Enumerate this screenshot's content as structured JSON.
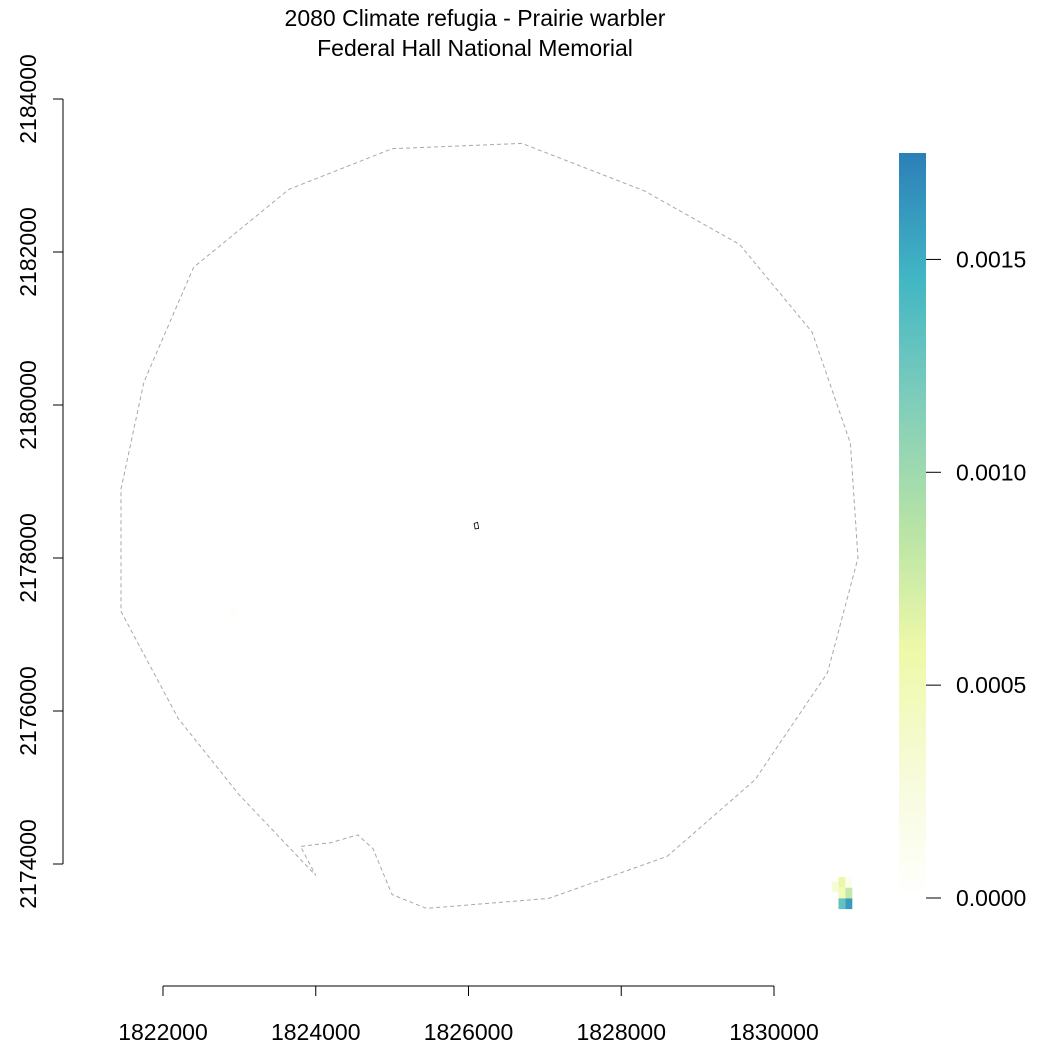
{
  "title": {
    "line1": "2080 Climate refugia - Prairie warbler",
    "line2": "Federal Hall National Memorial"
  },
  "map": {
    "x_axis": {
      "range": [
        1821000,
        1831500
      ],
      "ticks": [
        1822000,
        1824000,
        1826000,
        1828000,
        1830000
      ],
      "tick_labels": [
        "1822000",
        "1824000",
        "1826000",
        "1828000",
        "1830000"
      ]
    },
    "y_axis": {
      "range": [
        2172000,
        2185000
      ],
      "ticks": [
        2174000,
        2176000,
        2178000,
        2180000,
        2182000,
        2184000
      ],
      "tick_labels": [
        "2174000",
        "2176000",
        "2178000",
        "2180000",
        "2182000",
        "2184000"
      ]
    },
    "boundary": [
      [
        1825000,
        2183350
      ],
      [
        1826700,
        2183420
      ],
      [
        1828300,
        2182800
      ],
      [
        1829550,
        2182100
      ],
      [
        1830500,
        2180950
      ],
      [
        1831000,
        2179500
      ],
      [
        1831100,
        2178000
      ],
      [
        1830700,
        2176500
      ],
      [
        1829750,
        2175100
      ],
      [
        1828600,
        2174100
      ],
      [
        1827050,
        2173550
      ],
      [
        1825450,
        2173420
      ],
      [
        1825000,
        2173600
      ],
      [
        1824750,
        2174200
      ],
      [
        1824550,
        2174380
      ],
      [
        1824200,
        2174280
      ],
      [
        1823800,
        2174230
      ],
      [
        1824000,
        2173850
      ],
      [
        1823000,
        2174900
      ],
      [
        1822200,
        2175900
      ],
      [
        1821450,
        2177300
      ],
      [
        1821450,
        2178900
      ],
      [
        1821750,
        2180300
      ],
      [
        1822400,
        2181800
      ],
      [
        1823650,
        2182820
      ],
      [
        1825000,
        2183350
      ]
    ],
    "site_marker": [
      1826100,
      2178420
    ],
    "raster_cells": [
      {
        "x": 1822930,
        "y": 2177280,
        "value": 4e-05
      },
      {
        "x": 1830800,
        "y": 2173700,
        "value": 0.0003
      },
      {
        "x": 1830890,
        "y": 2173760,
        "value": 0.0006
      },
      {
        "x": 1830980,
        "y": 2173760,
        "value": 0.00012
      },
      {
        "x": 1830890,
        "y": 2173620,
        "value": 0.0005
      },
      {
        "x": 1830980,
        "y": 2173620,
        "value": 0.0008
      },
      {
        "x": 1830890,
        "y": 2173480,
        "value": 0.0013
      },
      {
        "x": 1830980,
        "y": 2173480,
        "value": 0.0016
      }
    ]
  },
  "legend": {
    "min": 0,
    "max": 0.00175,
    "ticks": [
      0,
      0.0005,
      0.001,
      0.0015
    ],
    "tick_labels": [
      "0.0000",
      "0.0005",
      "0.0010",
      "0.0015"
    ],
    "colors": [
      "#ffffff",
      "#f7fbd9",
      "#eef9a8",
      "#b6e3a6",
      "#7fcdbb",
      "#41b6c4",
      "#2c7fb8"
    ]
  }
}
